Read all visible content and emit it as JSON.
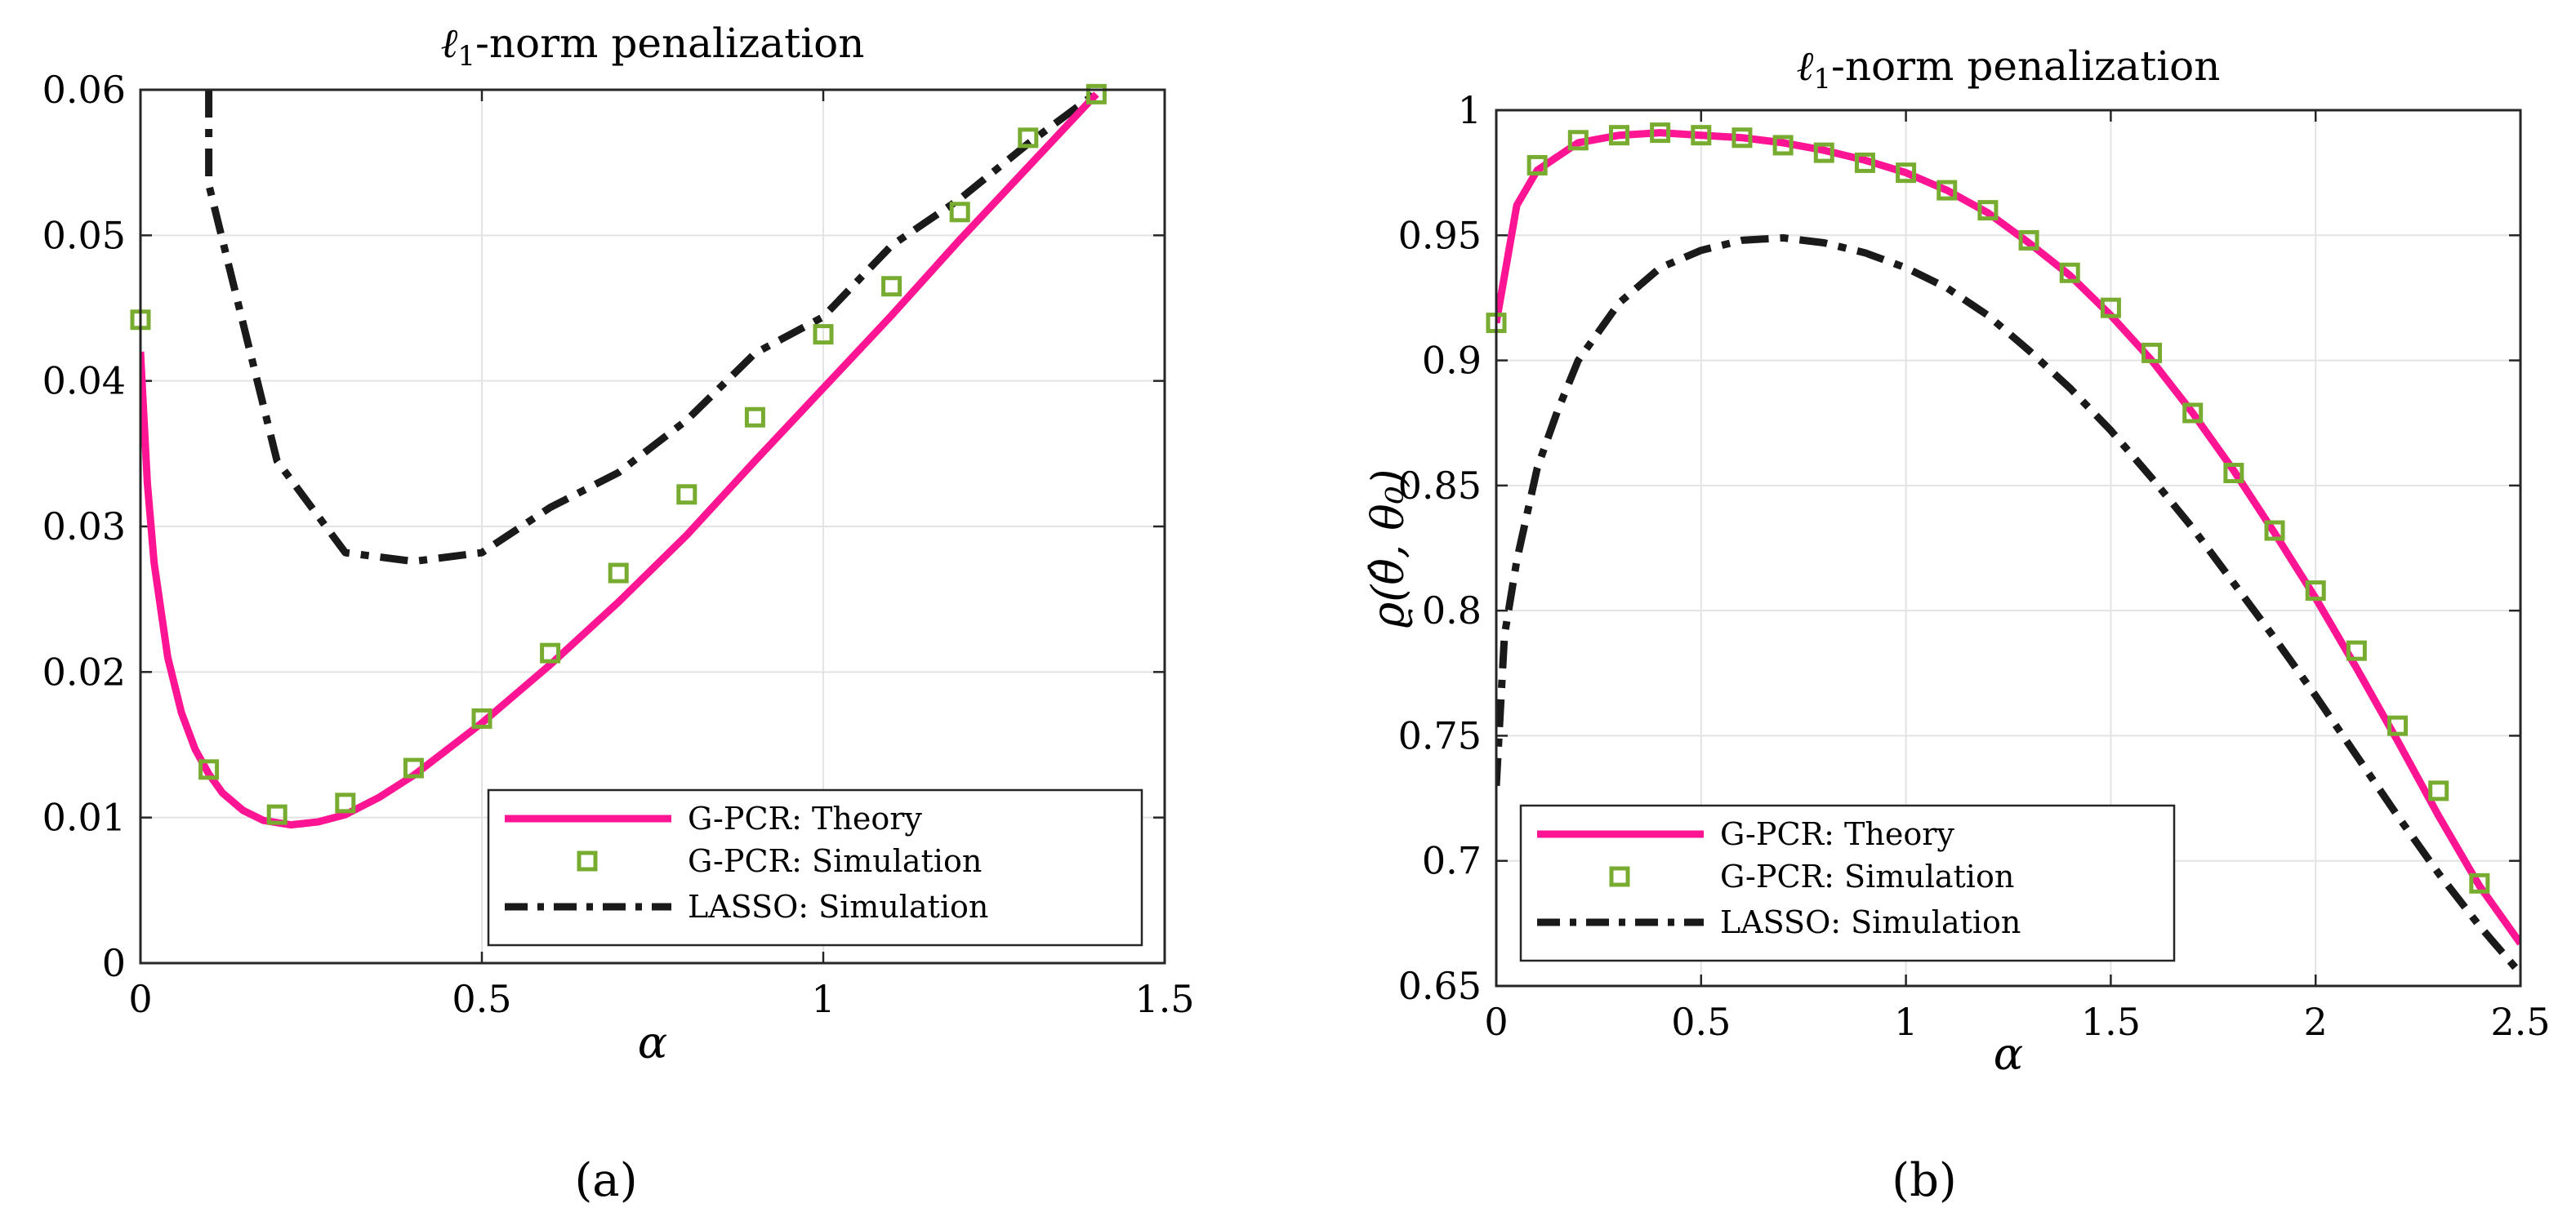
{
  "figure": {
    "panel_labels": [
      "(a)",
      "(b)"
    ]
  },
  "colors": {
    "theory": "#ff1493",
    "simulation": "#77ac30",
    "lasso": "#1a1a1a",
    "grid": "#e3e3e3",
    "axis": "#262626"
  },
  "chart_data": [
    {
      "id": "a",
      "type": "line",
      "title": "ℓ1-norm penalization",
      "xlabel": "α",
      "ylabel": "",
      "xlim": [
        0,
        1.5
      ],
      "ylim": [
        0,
        0.06
      ],
      "xticks": [
        0,
        0.5,
        1,
        1.5
      ],
      "xtick_labels": [
        "0",
        "0.5",
        "1",
        "1.5"
      ],
      "yticks": [
        0,
        0.01,
        0.02,
        0.03,
        0.04,
        0.05,
        0.06
      ],
      "ytick_labels": [
        "0",
        "0.01",
        "0.02",
        "0.03",
        "0.04",
        "0.05",
        "0.06"
      ],
      "grid": true,
      "legend_position": "bottom-right",
      "series": [
        {
          "name": "G-PCR: Theory",
          "style": "solid",
          "x": [
            0,
            0.01,
            0.02,
            0.04,
            0.06,
            0.08,
            0.1,
            0.12,
            0.15,
            0.18,
            0.22,
            0.26,
            0.3,
            0.35,
            0.4,
            0.5,
            0.6,
            0.7,
            0.8,
            0.9,
            1.0,
            1.1,
            1.2,
            1.3,
            1.4
          ],
          "y": [
            0.042,
            0.033,
            0.0275,
            0.021,
            0.0172,
            0.0147,
            0.013,
            0.0117,
            0.0105,
            0.0098,
            0.0095,
            0.0097,
            0.0102,
            0.0114,
            0.0129,
            0.0165,
            0.0205,
            0.0248,
            0.0294,
            0.0345,
            0.0395,
            0.0445,
            0.0497,
            0.0547,
            0.0597
          ]
        },
        {
          "name": "G-PCR: Simulation",
          "style": "square-marker",
          "x": [
            0,
            0.1,
            0.2,
            0.3,
            0.4,
            0.5,
            0.6,
            0.7,
            0.8,
            0.9,
            1.0,
            1.1,
            1.2,
            1.3,
            1.4
          ],
          "y": [
            0.0442,
            0.0133,
            0.0102,
            0.011,
            0.0134,
            0.0168,
            0.0213,
            0.0268,
            0.0322,
            0.0375,
            0.0432,
            0.0465,
            0.0516,
            0.0567,
            0.0597
          ]
        },
        {
          "name": "LASSO: Simulation",
          "style": "dashdot",
          "x": [
            0.1,
            0.1,
            0.2,
            0.3,
            0.4,
            0.5,
            0.6,
            0.7,
            0.8,
            0.9,
            1.0,
            1.1,
            1.2,
            1.3,
            1.4
          ],
          "y": [
            0.06,
            0.0535,
            0.0345,
            0.0282,
            0.0276,
            0.0282,
            0.0313,
            0.0337,
            0.0373,
            0.0419,
            0.0444,
            0.0493,
            0.0525,
            0.0563,
            0.0598
          ]
        }
      ]
    },
    {
      "id": "b",
      "type": "line",
      "title": "ℓ1-norm penalization",
      "xlabel": "α",
      "ylabel": "ϱ(θ̂, θ₀)",
      "xlim": [
        0,
        2.5
      ],
      "ylim": [
        0.65,
        1
      ],
      "xticks": [
        0,
        0.5,
        1,
        1.5,
        2,
        2.5
      ],
      "xtick_labels": [
        "0",
        "0.5",
        "1",
        "1.5",
        "2",
        "2.5"
      ],
      "yticks": [
        0.65,
        0.7,
        0.75,
        0.8,
        0.85,
        0.9,
        0.95,
        1
      ],
      "ytick_labels": [
        "0.65",
        "0.7",
        "0.75",
        "0.8",
        "0.85",
        "0.9",
        "0.95",
        "1"
      ],
      "grid": true,
      "legend_position": "bottom-left",
      "series": [
        {
          "name": "G-PCR: Theory",
          "style": "solid",
          "x": [
            0,
            0.05,
            0.1,
            0.2,
            0.3,
            0.4,
            0.5,
            0.6,
            0.7,
            0.8,
            0.9,
            1.0,
            1.1,
            1.2,
            1.3,
            1.4,
            1.5,
            1.6,
            1.7,
            1.8,
            1.9,
            2.0,
            2.1,
            2.2,
            2.3,
            2.4,
            2.5
          ],
          "y": [
            0.915,
            0.962,
            0.976,
            0.987,
            0.99,
            0.991,
            0.99,
            0.989,
            0.987,
            0.984,
            0.98,
            0.975,
            0.968,
            0.959,
            0.947,
            0.934,
            0.918,
            0.9,
            0.879,
            0.856,
            0.831,
            0.805,
            0.777,
            0.748,
            0.718,
            0.69,
            0.667
          ]
        },
        {
          "name": "G-PCR: Simulation",
          "style": "square-marker",
          "x": [
            0,
            0.1,
            0.2,
            0.3,
            0.4,
            0.5,
            0.6,
            0.7,
            0.8,
            0.9,
            1.0,
            1.1,
            1.2,
            1.3,
            1.4,
            1.5,
            1.6,
            1.7,
            1.8,
            1.9,
            2.0,
            2.1,
            2.2,
            2.3,
            2.4
          ],
          "y": [
            0.915,
            0.978,
            0.988,
            0.99,
            0.991,
            0.99,
            0.989,
            0.986,
            0.983,
            0.979,
            0.975,
            0.968,
            0.96,
            0.948,
            0.935,
            0.921,
            0.903,
            0.879,
            0.855,
            0.832,
            0.808,
            0.784,
            0.754,
            0.728,
            0.691
          ]
        },
        {
          "name": "LASSO: Simulation",
          "style": "dashdot",
          "x": [
            0,
            0.02,
            0.05,
            0.1,
            0.15,
            0.2,
            0.3,
            0.4,
            0.5,
            0.6,
            0.7,
            0.8,
            0.9,
            1.0,
            1.1,
            1.2,
            1.3,
            1.4,
            1.5,
            1.6,
            1.7,
            1.8,
            1.9,
            2.0,
            2.1,
            2.2,
            2.3,
            2.4,
            2.5
          ],
          "y": [
            0.73,
            0.79,
            0.82,
            0.857,
            0.88,
            0.9,
            0.923,
            0.937,
            0.944,
            0.948,
            0.949,
            0.947,
            0.943,
            0.937,
            0.929,
            0.918,
            0.904,
            0.889,
            0.872,
            0.853,
            0.833,
            0.811,
            0.789,
            0.766,
            0.742,
            0.718,
            0.695,
            0.674,
            0.655
          ]
        }
      ]
    }
  ]
}
